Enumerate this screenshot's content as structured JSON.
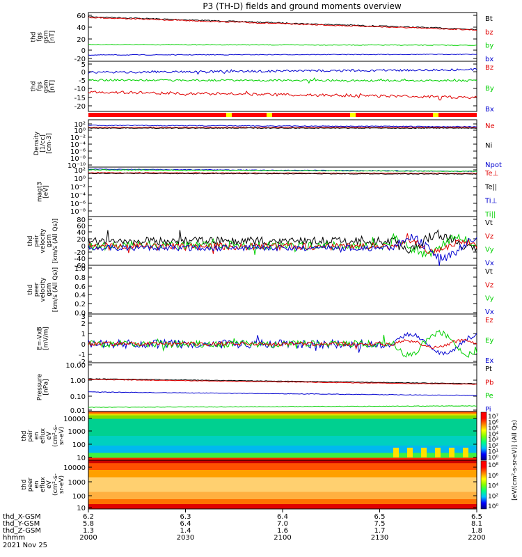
{
  "title": "P3 (TH-D) fields and ground moments overview",
  "date": "2021 Nov 25",
  "colors": {
    "black": "#000000",
    "red": "#e00000",
    "green": "#00d000",
    "blue": "#0000d0"
  },
  "panels": [
    {
      "id": "fgs-mag",
      "ylabel": [
        "thd",
        "fgs",
        "gsm",
        "[nT]"
      ],
      "ticks": [
        {
          "v": "60",
          "y": 22
        },
        {
          "v": "40",
          "y": 39
        },
        {
          "v": "20",
          "y": 56
        },
        {
          "v": "0",
          "y": 72
        },
        {
          "v": "-20",
          "y": 84
        }
      ],
      "legend": [
        {
          "t": "Bt",
          "c": "black"
        },
        {
          "t": "bz",
          "c": "red"
        },
        {
          "t": "by",
          "c": "green"
        },
        {
          "t": "bx",
          "c": "blue"
        }
      ]
    },
    {
      "id": "fgs-gsm",
      "ylabel": [
        "thd",
        "fgs",
        "gsm",
        "[nT]"
      ],
      "ticks": [
        {
          "v": "5",
          "y": 92
        },
        {
          "v": "0",
          "y": 103
        },
        {
          "v": "-5",
          "y": 115
        },
        {
          "v": "-10",
          "y": 127
        },
        {
          "v": "-15",
          "y": 140
        },
        {
          "v": "-20",
          "y": 152
        }
      ],
      "legend": [
        {
          "t": "Bz",
          "c": "red"
        },
        {
          "t": "By",
          "c": "green"
        },
        {
          "t": "Bx",
          "c": "blue"
        }
      ]
    },
    {
      "id": "density",
      "ylabel": [
        "Density",
        "[1/cc]",
        "[cm-3]"
      ],
      "ticks": [
        {
          "v": "10²",
          "y": 178
        },
        {
          "v": "10⁰",
          "y": 187
        },
        {
          "v": "10⁻²",
          "y": 197
        },
        {
          "v": "10⁻⁴",
          "y": 207
        },
        {
          "v": "10⁻⁶",
          "y": 217
        },
        {
          "v": "10⁻⁸",
          "y": 227
        },
        {
          "v": "10⁻¹⁰",
          "y": 237
        }
      ],
      "legend": [
        {
          "t": "Ne",
          "c": "red"
        },
        {
          "t": "Ni",
          "c": "black"
        },
        {
          "t": "Npot",
          "c": "blue"
        }
      ]
    },
    {
      "id": "temperature",
      "ylabel": [
        "magt3",
        "[eV]"
      ],
      "ticks": [
        {
          "v": "10²",
          "y": 244
        },
        {
          "v": "10⁰",
          "y": 256
        },
        {
          "v": "10⁻²",
          "y": 268
        },
        {
          "v": "10⁻⁴",
          "y": 280
        },
        {
          "v": "10⁻⁶",
          "y": 292
        },
        {
          "v": "10⁻⁸",
          "y": 303
        }
      ],
      "legend": [
        {
          "t": "Te⊥",
          "c": "red"
        },
        {
          "t": "Te||",
          "c": "black"
        },
        {
          "t": "Ti⊥",
          "c": "blue"
        },
        {
          "t": "Ti||",
          "c": "green"
        }
      ]
    },
    {
      "id": "peir-velocity",
      "ylabel": [
        "thd",
        "peir",
        "velocity",
        "gsm",
        "[km/s (All Qs)]"
      ],
      "ticks": [
        {
          "v": "80",
          "y": 315
        },
        {
          "v": "60",
          "y": 324
        },
        {
          "v": "40",
          "y": 333
        },
        {
          "v": "20",
          "y": 343
        },
        {
          "v": "0",
          "y": 353
        },
        {
          "v": "-20",
          "y": 362
        },
        {
          "v": "-40",
          "y": 371
        },
        {
          "v": "-60",
          "y": 381
        }
      ],
      "legend": [
        {
          "t": "Vt",
          "c": "black"
        },
        {
          "t": "Vz",
          "c": "red"
        },
        {
          "t": "Vy",
          "c": "green"
        },
        {
          "t": "Vx",
          "c": "blue"
        }
      ]
    },
    {
      "id": "peer-velocity",
      "ylabel": [
        "thd",
        "peer",
        "velocity",
        "gsm",
        "[km/s (All Qs)]"
      ],
      "ticks": [
        {
          "v": "1.0",
          "y": 385
        },
        {
          "v": "0.8",
          "y": 398
        },
        {
          "v": "0.6",
          "y": 411
        },
        {
          "v": "0.4",
          "y": 423
        },
        {
          "v": "0.2",
          "y": 436
        },
        {
          "v": "0.0",
          "y": 449
        }
      ],
      "legend": [
        {
          "t": "Vt",
          "c": "black"
        },
        {
          "t": "Vz",
          "c": "red"
        },
        {
          "t": "Vy",
          "c": "green"
        },
        {
          "t": "Vx",
          "c": "blue"
        }
      ]
    },
    {
      "id": "efield",
      "ylabel": [
        "E=-VxB",
        "[mV/m]"
      ],
      "ticks": [
        {
          "v": "3",
          "y": 454
        },
        {
          "v": "2",
          "y": 464
        },
        {
          "v": "1",
          "y": 479
        },
        {
          "v": "0",
          "y": 494
        },
        {
          "v": "-1",
          "y": 509
        },
        {
          "v": "-2",
          "y": 519
        }
      ],
      "legend": [
        {
          "t": "Ez",
          "c": "red"
        },
        {
          "t": "Ey",
          "c": "green"
        },
        {
          "t": "Ex",
          "c": "blue"
        }
      ]
    },
    {
      "id": "pressure",
      "ylabel": [
        "Pressure",
        "[nPa]"
      ],
      "ticks": [
        {
          "v": "10.00",
          "y": 524
        },
        {
          "v": "1.00",
          "y": 546
        },
        {
          "v": "0.10",
          "y": 569
        },
        {
          "v": "0.01",
          "y": 589
        }
      ],
      "legend": [
        {
          "t": "Pt",
          "c": "black"
        },
        {
          "t": "Pb",
          "c": "red"
        },
        {
          "t": "Pe",
          "c": "green"
        },
        {
          "t": "Pi",
          "c": "blue"
        }
      ]
    },
    {
      "id": "peir-eflux",
      "ylabel": [
        "thd",
        "peir",
        "en",
        "eflux",
        "eV",
        "(cm²-s-",
        "sr-eV)"
      ],
      "ticks": [
        {
          "v": "10000",
          "y": 601
        },
        {
          "v": "1000",
          "y": 619
        },
        {
          "v": "100",
          "y": 638
        },
        {
          "v": "10",
          "y": 657
        }
      ],
      "legend": []
    },
    {
      "id": "peer-eflux",
      "ylabel": [
        "thd",
        "peer",
        "en",
        "eflux",
        "eV",
        "(cm²-s-",
        "sr-eV)"
      ],
      "ticks": [
        {
          "v": "10000",
          "y": 671
        },
        {
          "v": "1000",
          "y": 692
        },
        {
          "v": "100",
          "y": 712
        },
        {
          "v": "10",
          "y": 729
        }
      ],
      "legend": []
    }
  ],
  "colorbar_label": "[eV/(cm²-s-sr-eV)] (All Qs)",
  "colorbar1_ticks": [
    "10⁷",
    "10⁶",
    "10⁵",
    "10⁴",
    "10³",
    "10²",
    "10¹",
    "10⁰"
  ],
  "colorbar2_ticks": [
    "10⁸",
    "10⁶",
    "10⁴",
    "10²",
    "10⁰"
  ],
  "bottom_axis": {
    "row_labels": [
      "thd_X-GSM",
      "thd_Y-GSM",
      "thd_Z-GSM",
      "hhmm"
    ],
    "columns": [
      {
        "x": "6.2",
        "y": "5.8",
        "z": "1.3",
        "t": "2000"
      },
      {
        "x": "6.3",
        "y": "6.4",
        "z": "1.4",
        "t": "2030"
      },
      {
        "x": "6.4",
        "y": "7.0",
        "z": "1.6",
        "t": "2100"
      },
      {
        "x": "6.5",
        "y": "7.5",
        "z": "1.7",
        "t": "2130"
      },
      {
        "x": "6.5",
        "y": "8.1",
        "z": "1.8",
        "t": "2200"
      }
    ]
  },
  "chart_data": {
    "type": "line",
    "x": [
      "2000",
      "2030",
      "2100",
      "2130",
      "2200"
    ],
    "xlabel": "hhmm",
    "series": [
      {
        "name": "Bt",
        "panel": "fgs-mag",
        "values": [
          55,
          46,
          40,
          36,
          34
        ]
      },
      {
        "name": "bz",
        "panel": "fgs-mag",
        "values": [
          55,
          46,
          40,
          35,
          34
        ]
      },
      {
        "name": "by",
        "panel": "fgs-mag",
        "values": [
          10,
          10,
          10,
          10,
          10
        ]
      },
      {
        "name": "bx",
        "panel": "fgs-mag",
        "values": [
          -10,
          -10,
          -10,
          -9,
          -9
        ]
      },
      {
        "name": "Bz",
        "panel": "fgs-gsm",
        "values": [
          -1,
          -1,
          -1,
          2,
          1
        ]
      },
      {
        "name": "By",
        "panel": "fgs-gsm",
        "values": [
          -6,
          -6,
          -6,
          -5,
          -6
        ]
      },
      {
        "name": "Bx",
        "panel": "fgs-gsm",
        "values": [
          -13,
          -12,
          -13,
          -16,
          -14
        ]
      },
      {
        "name": "Pt",
        "panel": "pressure",
        "values": [
          1.1,
          0.95,
          0.8,
          0.7,
          0.6
        ]
      },
      {
        "name": "Pb",
        "panel": "pressure",
        "values": [
          1.0,
          0.9,
          0.75,
          0.6,
          0.55
        ]
      },
      {
        "name": "Pe",
        "panel": "pressure",
        "values": [
          0.2,
          0.18,
          0.16,
          0.15,
          0.13
        ]
      },
      {
        "name": "Pi",
        "panel": "pressure",
        "values": [
          0.02,
          0.018,
          0.018,
          0.02,
          0.02
        ]
      }
    ]
  }
}
